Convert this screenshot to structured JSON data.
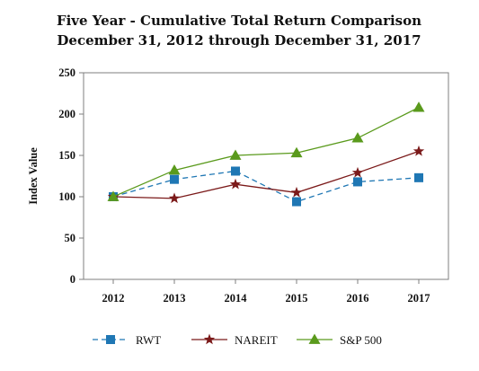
{
  "chart_data": {
    "type": "line",
    "title": "Five Year - Cumulative Total Return Comparison",
    "subtitle": "December 31, 2012 through December 31, 2017",
    "ylabel": "Index Value",
    "xlabel": "",
    "categories": [
      "2012",
      "2013",
      "2014",
      "2015",
      "2016",
      "2017"
    ],
    "ylim": [
      0,
      250
    ],
    "yticks": [
      0,
      50,
      100,
      150,
      200,
      250
    ],
    "grid": false,
    "legend": "bottom",
    "series": [
      {
        "name": "RWT",
        "values": [
          100,
          121,
          131,
          94,
          118,
          123
        ],
        "color": "#1f77b4",
        "marker": "square",
        "dash": true
      },
      {
        "name": "NAREIT",
        "values": [
          100,
          98,
          115,
          105,
          129,
          155
        ],
        "color": "#7b1a1a",
        "marker": "star",
        "dash": false
      },
      {
        "name": "S&P 500",
        "values": [
          100,
          132,
          150,
          153,
          171,
          208
        ],
        "color": "#5a9a1c",
        "marker": "triangle",
        "dash": false
      }
    ]
  }
}
